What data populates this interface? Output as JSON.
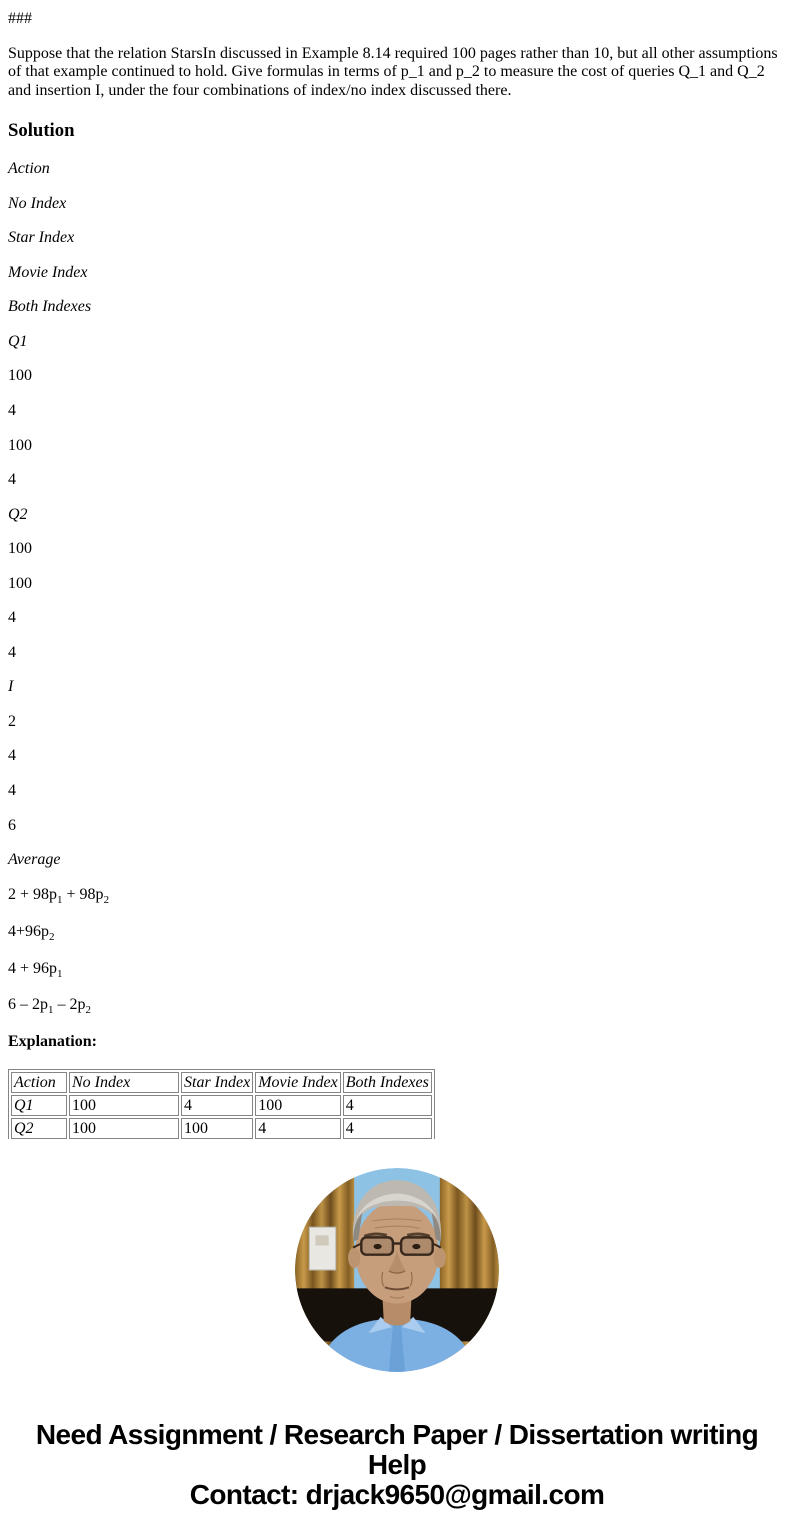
{
  "doc": {
    "marker": "###",
    "question": "Suppose that the relation StarsIn discussed in Example 8.14 required 100 pages rather than 10, but all other assumptions of that example continued to hold. Give formulas in terms of p_1 and p_2 to measure the cost of queries Q_1 and Q_2 and insertion I, under the four combinations of index/no index discussed there.",
    "solution_heading": "Solution",
    "explanation_heading": "Explanation:"
  },
  "solution_items": [
    {
      "text": "Action",
      "italic": true
    },
    {
      "text": "No Index",
      "italic": true
    },
    {
      "text": "Star Index",
      "italic": true
    },
    {
      "text": "Movie Index",
      "italic": true
    },
    {
      "text": "Both Indexes",
      "italic": true
    },
    {
      "text": "Q1",
      "italic": true
    },
    {
      "text": "100"
    },
    {
      "text": "4"
    },
    {
      "text": "100"
    },
    {
      "text": "4"
    },
    {
      "text": "Q2",
      "italic": true
    },
    {
      "text": "100"
    },
    {
      "text": "100"
    },
    {
      "text": "4"
    },
    {
      "text": "4"
    },
    {
      "text": "I",
      "italic": true
    },
    {
      "text": "2"
    },
    {
      "text": "4"
    },
    {
      "text": "4"
    },
    {
      "text": "6"
    },
    {
      "text": "Average",
      "italic": true
    },
    {
      "text": "2 + 98p_1 + 98p_2",
      "formula": true
    },
    {
      "text": "4+96p_2",
      "formula": true
    },
    {
      "text": "4 + 96p_1",
      "formula": true
    },
    {
      "text": "6 – 2p_1 – 2p_2",
      "formula": true
    }
  ],
  "cost_table": {
    "headers": [
      "Action",
      "No Index",
      "Star Index",
      "Movie Index",
      "Both Indexes"
    ],
    "rows": [
      [
        "Q1",
        "100",
        "4",
        "100",
        "4"
      ],
      [
        "Q2",
        "100",
        "100",
        "4",
        "4"
      ]
    ]
  },
  "photo": {
    "description": "Circular portrait photo of an older man with gray hair and glasses wearing a light blue shirt"
  },
  "footer": {
    "line1": "Need Assignment / Research Paper / Dissertation writing Help",
    "line2": "Contact: drjack9650@gmail.com"
  }
}
